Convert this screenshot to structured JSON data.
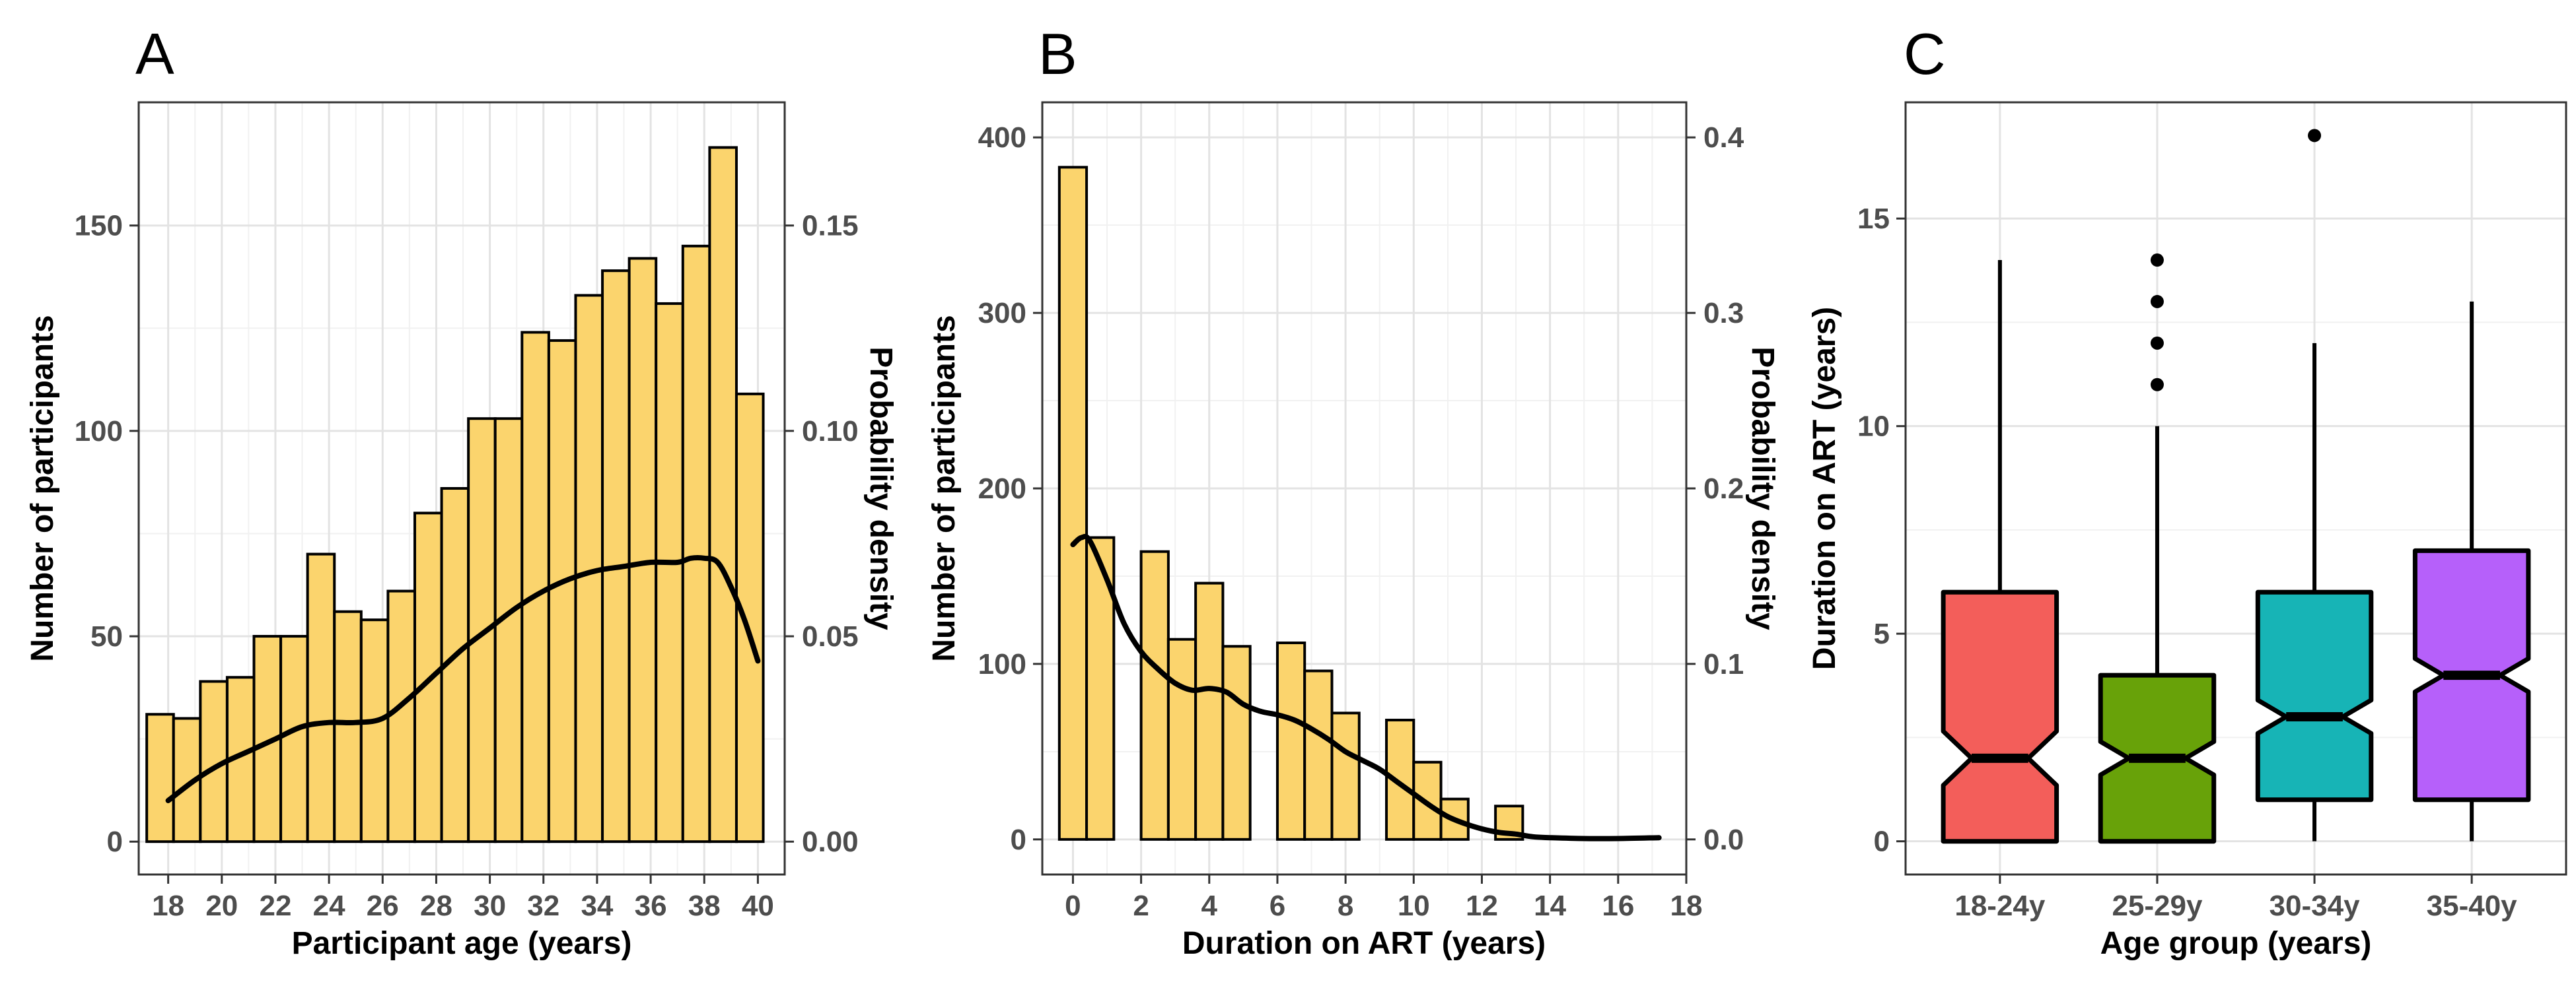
{
  "chart_data": [
    {
      "panel": "A",
      "type": "bar",
      "xlabel": "Participant age (years)",
      "ylabel": "Number of participants",
      "y2label": "Probability density",
      "xticks": [
        18,
        20,
        22,
        24,
        26,
        28,
        30,
        32,
        34,
        36,
        38,
        40
      ],
      "yticks": [
        0,
        50,
        100,
        150
      ],
      "y2ticks": [
        "0.00",
        "0.05",
        "0.10",
        "0.15"
      ],
      "xlim": [
        16.9,
        41.0
      ],
      "ylim": [
        -8,
        180
      ],
      "y2lim": [
        -0.008,
        0.18
      ],
      "bar_width": 1,
      "bar_color": "#FBD46D",
      "bar_centers": [
        17.7,
        18.7,
        19.7,
        20.7,
        21.7,
        22.7,
        23.7,
        24.7,
        25.7,
        26.7,
        27.7,
        28.7,
        29.7,
        30.7,
        31.7,
        32.7,
        33.7,
        34.7,
        35.7,
        36.7,
        37.7,
        38.7,
        39.7
      ],
      "values": [
        31,
        30,
        39,
        40,
        50,
        50,
        70,
        56,
        54,
        61,
        80,
        86,
        103,
        103,
        124,
        122,
        133,
        139,
        142,
        131,
        145,
        169,
        109
      ],
      "density_x": [
        18,
        19,
        20,
        21,
        22,
        23,
        24,
        25,
        26,
        27,
        28,
        29,
        30,
        31,
        32,
        33,
        34,
        35,
        36,
        37,
        37.5,
        38,
        38.5,
        39,
        39.5,
        40
      ],
      "density_y": [
        0.01,
        0.015,
        0.019,
        0.022,
        0.025,
        0.028,
        0.029,
        0.029,
        0.03,
        0.035,
        0.041,
        0.047,
        0.052,
        0.057,
        0.061,
        0.064,
        0.066,
        0.067,
        0.068,
        0.068,
        0.069,
        0.069,
        0.068,
        0.062,
        0.054,
        0.044
      ]
    },
    {
      "panel": "B",
      "type": "bar",
      "xlabel": "Duration on ART (years)",
      "ylabel": "Number of participants",
      "y2label": "Probability density",
      "xticks": [
        0,
        2,
        4,
        6,
        8,
        10,
        12,
        14,
        16,
        18
      ],
      "yticks": [
        0,
        100,
        200,
        300,
        400
      ],
      "y2ticks": [
        "0.0",
        "0.1",
        "0.2",
        "0.3",
        "0.4"
      ],
      "xlim": [
        -0.9,
        18.0
      ],
      "ylim": [
        -20,
        420
      ],
      "y2lim": [
        -0.02,
        0.42
      ],
      "bar_width": 0.8,
      "bar_color": "#FBD46D",
      "bar_centers": [
        0,
        0.8,
        2.4,
        3.2,
        4.0,
        4.8,
        6.4,
        7.2,
        8.0,
        9.6,
        10.4,
        11.2,
        12.8
      ],
      "values": [
        383,
        172,
        164,
        114,
        146,
        110,
        112,
        96,
        72,
        68,
        44,
        23,
        19
      ],
      "density_x": [
        0,
        0.25,
        0.5,
        1,
        1.5,
        2,
        2.5,
        3,
        3.5,
        4,
        4.5,
        5,
        5.5,
        6,
        6.5,
        7,
        7.5,
        8,
        8.5,
        9,
        9.5,
        10,
        10.5,
        11,
        11.5,
        12,
        12.5,
        13,
        13.5,
        14,
        15,
        16,
        17.2
      ],
      "density_y": [
        0.168,
        0.172,
        0.17,
        0.148,
        0.123,
        0.107,
        0.097,
        0.089,
        0.085,
        0.086,
        0.084,
        0.077,
        0.073,
        0.071,
        0.068,
        0.063,
        0.057,
        0.05,
        0.045,
        0.04,
        0.033,
        0.026,
        0.019,
        0.013,
        0.009,
        0.006,
        0.004,
        0.003,
        0.0015,
        0.001,
        0.0005,
        0.0005,
        0.001
      ]
    },
    {
      "panel": "C",
      "type": "boxplot",
      "xlabel": "Age group (years)",
      "ylabel": "Duration on ART (years)",
      "yticks": [
        0,
        5,
        10,
        15
      ],
      "ylim": [
        -0.8,
        17.8
      ],
      "categories": [
        "18-24y",
        "25-29y",
        "30-34y",
        "35-40y"
      ],
      "boxes": [
        {
          "name": "18-24y",
          "color": "#F35E5A",
          "min": 0,
          "q1": 0,
          "median": 2,
          "q3": 6,
          "max": 14,
          "notch_low": 1.35,
          "notch_high": 2.65,
          "outliers": []
        },
        {
          "name": "25-29y",
          "color": "#68A209",
          "min": 0,
          "q1": 0,
          "median": 2,
          "q3": 4,
          "max": 10,
          "notch_low": 1.6,
          "notch_high": 2.4,
          "outliers": [
            11,
            12,
            13,
            14
          ]
        },
        {
          "name": "30-34y",
          "color": "#17B4B6",
          "min": 0,
          "q1": 1,
          "median": 3,
          "q3": 6,
          "max": 12,
          "notch_low": 2.6,
          "notch_high": 3.4,
          "outliers": [
            17
          ]
        },
        {
          "name": "35-40y",
          "color": "#B660FA",
          "min": 0,
          "q1": 1,
          "median": 4,
          "q3": 7,
          "max": 13,
          "notch_low": 3.6,
          "notch_high": 4.4,
          "outliers": []
        }
      ]
    }
  ]
}
